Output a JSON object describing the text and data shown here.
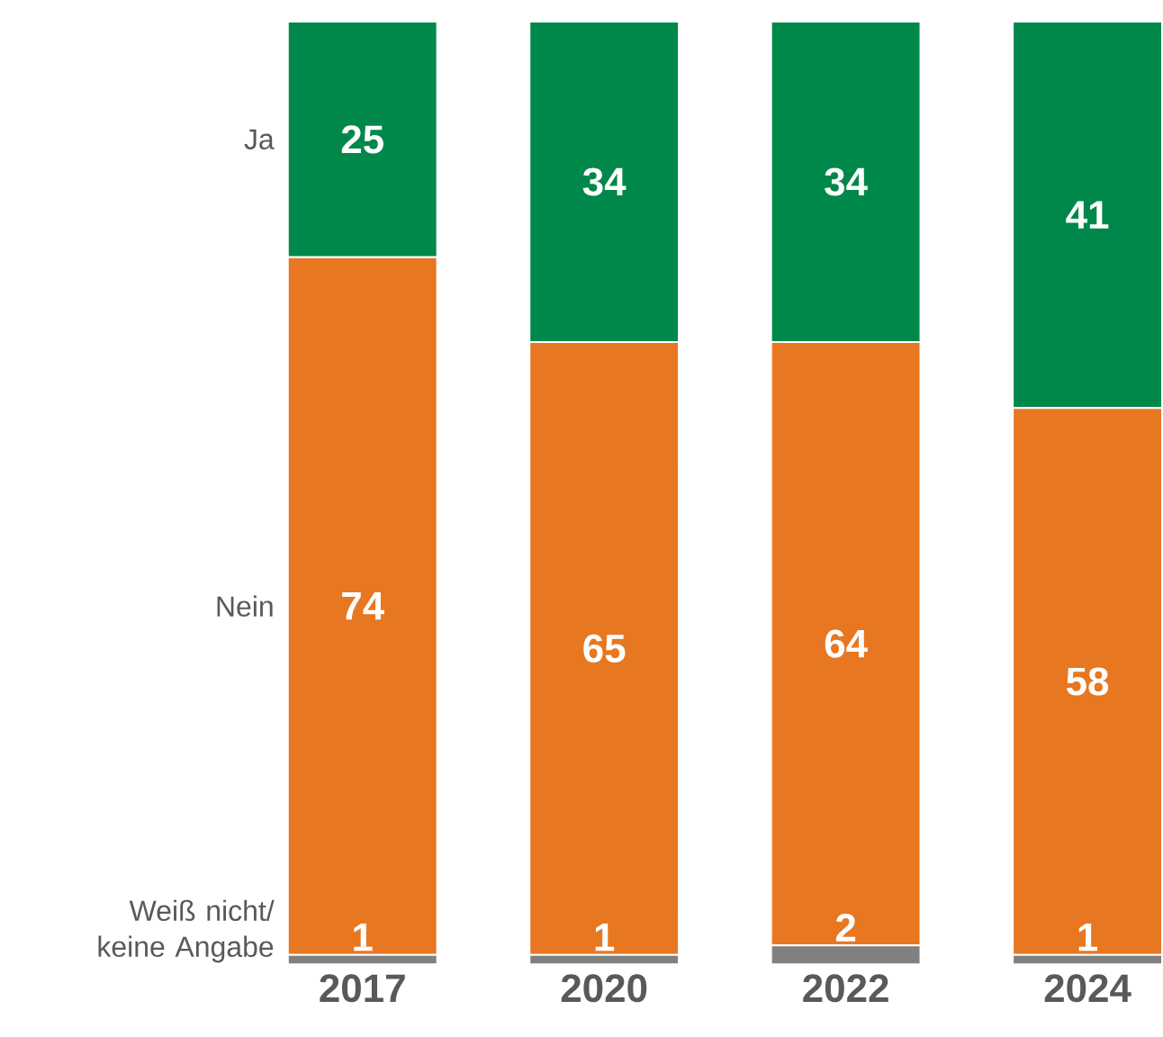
{
  "chart_data": {
    "type": "bar",
    "stacked": true,
    "data_labels": true,
    "legend": false,
    "categories": [
      "2017",
      "2020",
      "2022",
      "2024"
    ],
    "series": [
      {
        "name": "Weiß nicht/ keine Angabe",
        "color": "#808080",
        "values": [
          1,
          1,
          2,
          1
        ]
      },
      {
        "name": "Nein",
        "color": "#e87722",
        "values": [
          74,
          65,
          64,
          58
        ]
      },
      {
        "name": "Ja",
        "color": "#00884a",
        "values": [
          25,
          34,
          34,
          41
        ]
      }
    ]
  }
}
